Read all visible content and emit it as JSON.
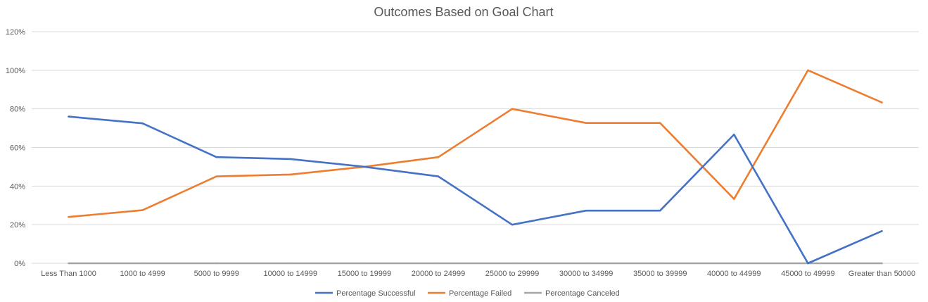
{
  "chart_data": {
    "type": "line",
    "title": "Outcomes Based on Goal Chart",
    "xlabel": "",
    "ylabel": "",
    "ylim": [
      0,
      1.2
    ],
    "y_tick_values": [
      0,
      0.2,
      0.4,
      0.6,
      0.8,
      1.0,
      1.2
    ],
    "y_tick_labels": [
      "0%",
      "20%",
      "40%",
      "60%",
      "80%",
      "100%",
      "120%"
    ],
    "grid": true,
    "legend_position": "bottom",
    "categories": [
      "Less Than 1000",
      "1000 to 4999",
      "5000 to 9999",
      "10000 to 14999",
      "15000 to 19999",
      "20000 to 24999",
      "25000 to 29999",
      "30000 to 34999",
      "35000 to 39999",
      "40000 to 44999",
      "45000 to 49999",
      "Greater than 50000"
    ],
    "series": [
      {
        "name": "Percentage Successful",
        "color": "#4472C4",
        "values": [
          0.76,
          0.725,
          0.55,
          0.54,
          0.5,
          0.45,
          0.2,
          0.273,
          0.273,
          0.667,
          0.0,
          0.167
        ]
      },
      {
        "name": "Percentage Failed",
        "color": "#ED7D31",
        "values": [
          0.24,
          0.275,
          0.45,
          0.46,
          0.5,
          0.55,
          0.8,
          0.727,
          0.727,
          0.333,
          1.0,
          0.833
        ]
      },
      {
        "name": "Percentage Canceled",
        "color": "#A5A5A5",
        "values": [
          0,
          0,
          0,
          0,
          0,
          0,
          0,
          0,
          0,
          0,
          0,
          0
        ]
      }
    ]
  }
}
